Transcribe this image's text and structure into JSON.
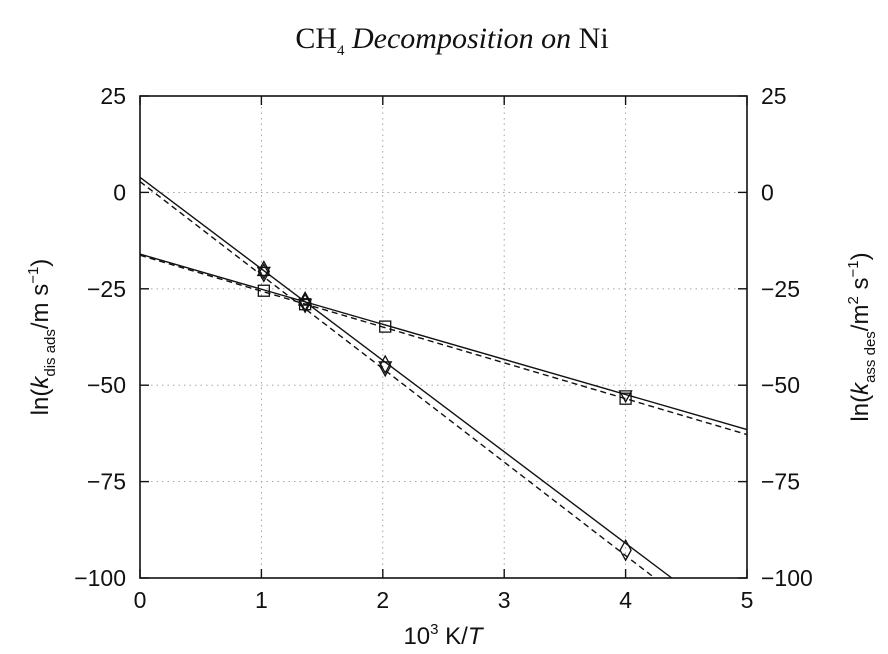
{
  "chart_data": {
    "type": "scatter",
    "title": {
      "prefix": "CH",
      "sub": "4",
      "italic": "Decomposition on",
      "suffix": "Ni"
    },
    "xlabel": {
      "base": "10",
      "sup": "3",
      "mid": "K/",
      "italic": "T"
    },
    "ylabel_left": {
      "pre": "ln(",
      "k": "k",
      "sub": "dis ads",
      "unit": "/m s",
      "sup": "−1",
      "post": ")"
    },
    "ylabel_right": {
      "pre": "ln(",
      "k": "k",
      "sub": "ass des",
      "unit": "/m",
      "sup1": "2",
      "mid": " s",
      "sup2": "−1",
      "post": ")"
    },
    "xlim": [
      0,
      5
    ],
    "ylim": [
      -100,
      25
    ],
    "x_ticks": [
      0,
      1,
      2,
      3,
      4,
      5
    ],
    "x_tick_labels": [
      "0",
      "1",
      "2",
      "3",
      "4",
      "5"
    ],
    "y_ticks": [
      25,
      0,
      -25,
      -50,
      -75,
      -100
    ],
    "y_tick_labels": [
      "25",
      "0",
      "−25",
      "−50",
      "−75",
      "−100"
    ],
    "grid": true,
    "lines": [
      {
        "style": "solid",
        "x": [
          0,
          4.38
        ],
        "y": [
          3.9,
          -100
        ]
      },
      {
        "style": "dashed",
        "x": [
          0,
          4.24
        ],
        "y": [
          2.8,
          -100
        ]
      },
      {
        "style": "solid",
        "x": [
          0,
          5
        ],
        "y": [
          -16,
          -61.5
        ]
      },
      {
        "style": "dashed",
        "x": [
          0,
          5
        ],
        "y": [
          -16.3,
          -62.8
        ]
      }
    ],
    "markers": [
      {
        "shape": "diamond",
        "x": 1.02,
        "y": -20.5
      },
      {
        "shape": "triangle",
        "x": 1.02,
        "y": -20.5
      },
      {
        "shape": "triangle",
        "x": 1.02,
        "y": -20.5,
        "inverted": true
      },
      {
        "shape": "diamond",
        "x": 1.36,
        "y": -28.5
      },
      {
        "shape": "triangle",
        "x": 1.36,
        "y": -28.2
      },
      {
        "shape": "triangle",
        "x": 1.36,
        "y": -28.8,
        "inverted": true
      },
      {
        "shape": "diamond",
        "x": 2.02,
        "y": -45
      },
      {
        "shape": "triangle",
        "x": 2.02,
        "y": -45,
        "inverted": true
      },
      {
        "shape": "diamond",
        "x": 4.0,
        "y": -92.8
      },
      {
        "shape": "square",
        "x": 1.02,
        "y": -25.5
      },
      {
        "shape": "square",
        "x": 1.36,
        "y": -29
      },
      {
        "shape": "square",
        "x": 2.02,
        "y": -34.8
      },
      {
        "shape": "square",
        "x": 4.0,
        "y": -53.5
      },
      {
        "shape": "triangle",
        "x": 4.0,
        "y": -52.5,
        "inverted": true
      }
    ]
  }
}
